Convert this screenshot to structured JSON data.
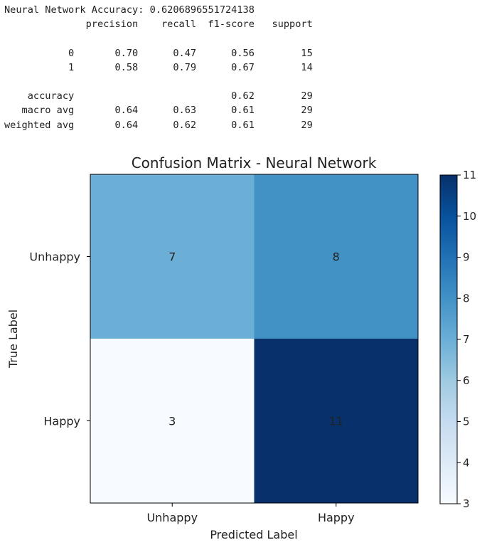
{
  "report": {
    "lines": [
      "Neural Network Accuracy: 0.6206896551724138",
      "              precision    recall  f1-score   support",
      "",
      "           0       0.70      0.47      0.56        15",
      "           1       0.58      0.79      0.67        14",
      "",
      "    accuracy                           0.62        29",
      "   macro avg       0.64      0.63      0.61        29",
      "weighted avg       0.64      0.62      0.61        29"
    ]
  },
  "chart_data": {
    "type": "heatmap",
    "title": "Confusion Matrix - Neural Network",
    "xlabel": "Predicted Label",
    "ylabel": "True Label",
    "x_categories": [
      "Unhappy",
      "Happy"
    ],
    "y_categories": [
      "Unhappy",
      "Happy"
    ],
    "values": [
      [
        7,
        8
      ],
      [
        3,
        11
      ]
    ],
    "colormap": "Blues",
    "colorbar": {
      "min": 3,
      "max": 11,
      "ticks": [
        3,
        4,
        5,
        6,
        7,
        8,
        9,
        10,
        11
      ]
    },
    "colors": {
      "cell_low": "#f7fbff",
      "cell_7": "#6baed6",
      "cell_8": "#3e8ec4",
      "cell_high": "#08306b",
      "text": "#222222"
    }
  }
}
